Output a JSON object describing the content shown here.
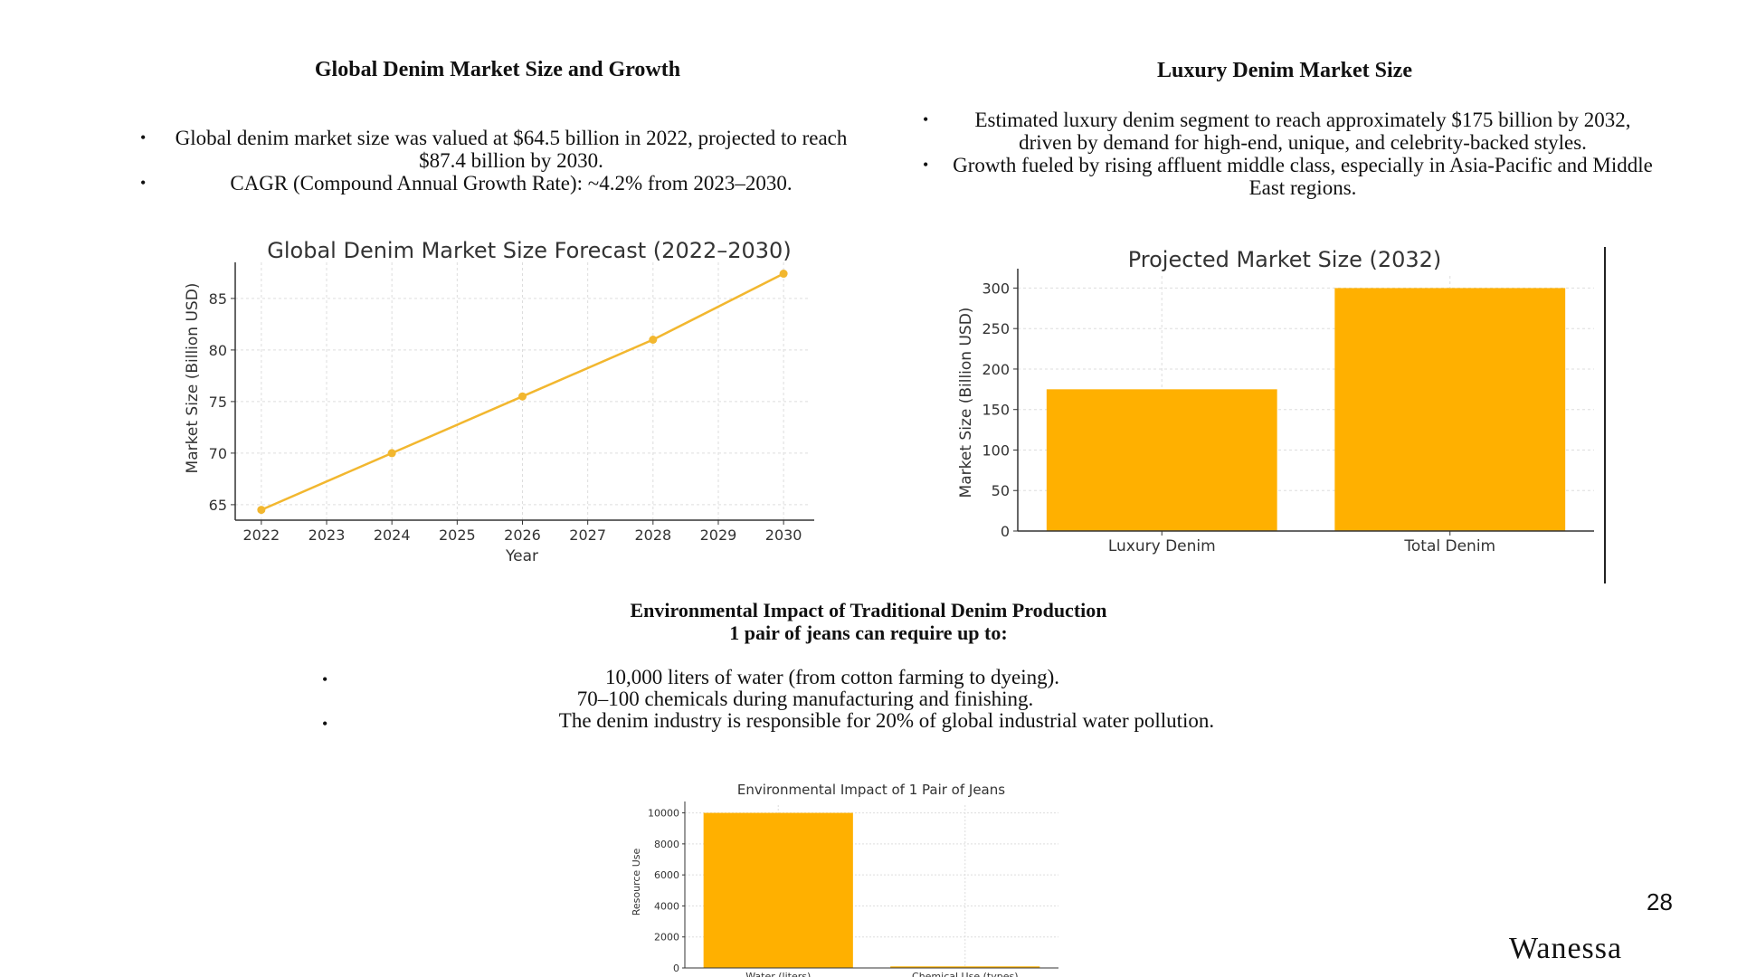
{
  "section1": {
    "heading": "Global Denim Market Size and Growth",
    "bullets": [
      "Global denim market size was valued at $64.5 billion in 2022, projected to reach $87.4 billion by 2030.",
      "CAGR (Compound Annual Growth Rate): ~4.2% from 2023–2030."
    ]
  },
  "section2": {
    "heading": "Luxury Denim Market Size",
    "bullets": [
      "Estimated luxury denim segment to reach approximately $175 billion by 2032, driven by demand for high-end, unique, and celebrity-backed styles.",
      "Growth fueled by rising affluent middle class, especially in Asia-Pacific and Middle East regions."
    ]
  },
  "section3": {
    "heading": "Environmental Impact of Traditional Denim Production",
    "subheading": "1 pair of jeans can require up to:",
    "line1": "10,000 liters of water (from cotton farming to dyeing).",
    "line2": "70–100 chemicals during manufacturing and finishing.",
    "line3": "The denim industry is responsible for 20% of global industrial water pollution."
  },
  "page_number": "28",
  "author": "Wanessa",
  "colors": {
    "accent": "#FFB000",
    "line": "#F2B72F",
    "grid": "#dddddd"
  },
  "chart_data": [
    {
      "type": "line",
      "title": "Global Denim Market Size Forecast (2022–2030)",
      "xlabel": "Year",
      "ylabel": "Market Size (Billion USD)",
      "x": [
        2022,
        2024,
        2026,
        2028,
        2030
      ],
      "xticks": [
        "2022",
        "2023",
        "2024",
        "2025",
        "2026",
        "2027",
        "2028",
        "2029",
        "2030"
      ],
      "xlim": [
        2021.6,
        2030.4
      ],
      "yticks": [
        "65",
        "70",
        "75",
        "80",
        "85"
      ],
      "ylim": [
        63.5,
        88.5
      ],
      "series": [
        {
          "values": [
            64.5,
            70,
            75.5,
            81,
            87.4
          ]
        }
      ],
      "grid": true
    },
    {
      "type": "bar",
      "title": "Projected Market Size (2032)",
      "ylabel": "Market Size (Billion USD)",
      "categories": [
        "Luxury Denim",
        "Total Denim"
      ],
      "values": [
        175,
        300
      ],
      "yticks": [
        "0",
        "50",
        "100",
        "150",
        "200",
        "250",
        "300"
      ],
      "ylim": [
        0,
        315
      ],
      "grid": true
    },
    {
      "type": "bar",
      "title": "Environmental Impact of 1 Pair of Jeans",
      "ylabel": "Resource Use",
      "categories": [
        "Water (liters)",
        "Chemical Use (types)"
      ],
      "values": [
        10000,
        100
      ],
      "yticks": [
        "0",
        "2000",
        "4000",
        "6000",
        "8000",
        "10000"
      ],
      "ylim": [
        0,
        10500
      ],
      "grid": true
    }
  ]
}
